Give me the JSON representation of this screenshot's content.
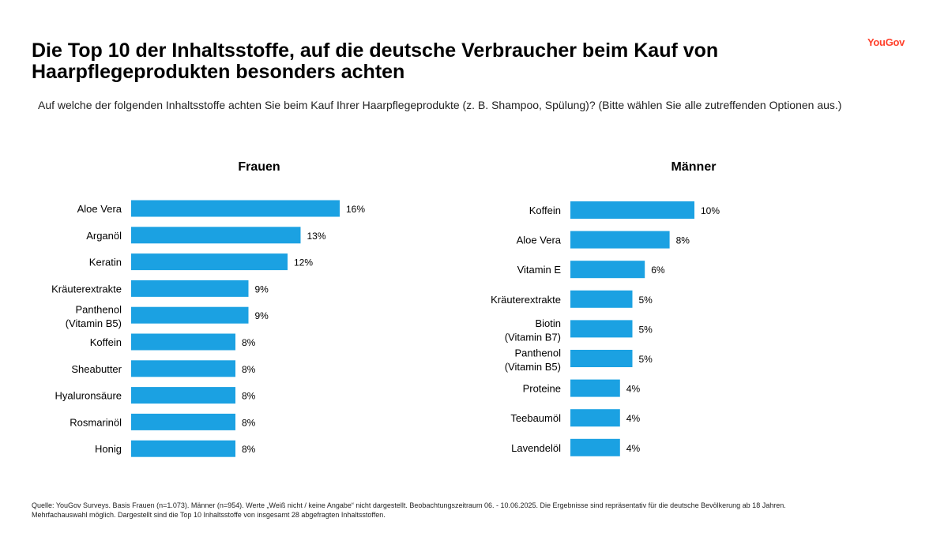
{
  "brand": "YouGov",
  "title": "Die Top 10 der Inhaltsstoffe, auf die deutsche Verbraucher beim Kauf von Haarpflegeprodukten besonders achten",
  "question": "Auf welche der folgenden Inhaltsstoffe achten Sie beim Kauf Ihrer Haarpflegeprodukte (z. B. Shampoo, Spülung)? (Bitte wählen Sie alle zutreffenden Optionen aus.)",
  "footer": {
    "line1": "Quelle: YouGov Surveys. Basis Frauen (n=1.073). Männer (n=954). Werte „Weiß nicht / keine Angabe“ nicht dargestellt. Beobachtungszeitraum 06. - 10.06.2025. Die Ergebnisse sind repräsentativ für die deutsche Bevölkerung ab 18 Jahren.",
    "line2": "Mehrfachauswahl möglich. Dargestellt sind die Top 10 Inhaltsstoffe von insgesamt 28 abgefragten Inhaltsstoffen."
  },
  "colors": {
    "bar": "#1ba1e2",
    "brand": "#ff412c"
  },
  "chart_data": [
    {
      "type": "bar",
      "orientation": "horizontal",
      "title": "Frauen",
      "unit": "%",
      "categories": [
        "Aloe Vera",
        "Arganöl",
        "Keratin",
        "Kräuterextrakte",
        "Panthenol (Vitamin B5)",
        "Koffein",
        "Sheabutter",
        "Hyaluronsäure",
        "Rosmarinöl",
        "Honig"
      ],
      "values": [
        16,
        13,
        12,
        9,
        9,
        8,
        8,
        8,
        8,
        8
      ],
      "labels": [
        "16%",
        "13%",
        "12%",
        "9%",
        "9%",
        "8%",
        "8%",
        "8%",
        "8%",
        "8%"
      ]
    },
    {
      "type": "bar",
      "orientation": "horizontal",
      "title": "Männer",
      "unit": "%",
      "categories": [
        "Koffein",
        "Aloe Vera",
        "Vitamin E",
        "Kräuterextrakte",
        "Biotin (Vitamin B7)",
        "Panthenol (Vitamin B5)",
        "Proteine",
        "Teebaumöl",
        "Lavendelöl"
      ],
      "values": [
        10,
        8,
        6,
        5,
        5,
        5,
        4,
        4,
        4
      ],
      "labels": [
        "10%",
        "8%",
        "6%",
        "5%",
        "5%",
        "5%",
        "4%",
        "4%",
        "4%"
      ]
    }
  ]
}
